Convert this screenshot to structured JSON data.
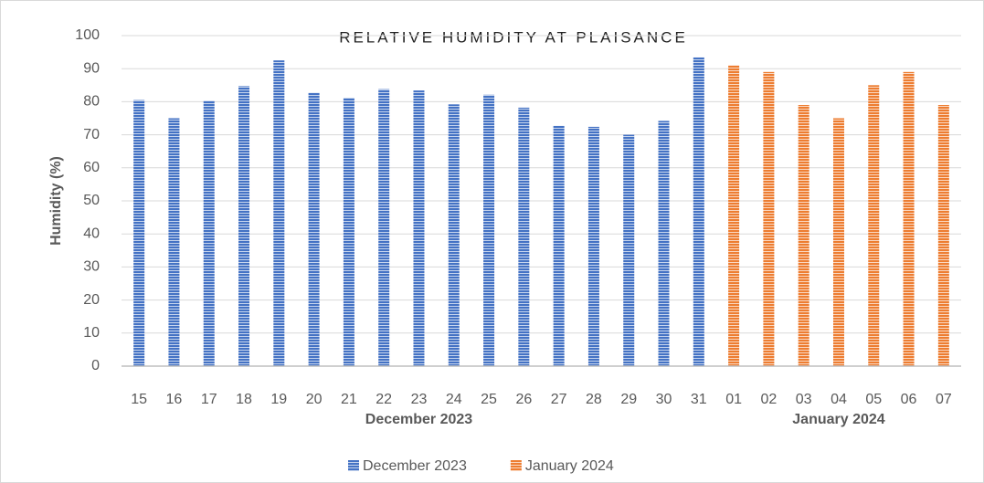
{
  "chart_data": {
    "type": "bar",
    "title": "RELATIVE HUMIDITY AT PLAISANCE",
    "y_label": "Humidity (%)",
    "categories": [
      "15",
      "16",
      "17",
      "18",
      "19",
      "20",
      "21",
      "22",
      "23",
      "24",
      "25",
      "26",
      "27",
      "28",
      "29",
      "30",
      "31",
      "01",
      "02",
      "03",
      "04",
      "05",
      "06",
      "07"
    ],
    "series": [
      {
        "name": "December 2023",
        "color": "#4472c4",
        "values": [
          80.5,
          75,
          80.3,
          84.7,
          92.5,
          82.7,
          81.2,
          83.8,
          83.4,
          79.2,
          82.1,
          78.2,
          72.7,
          72.4,
          70,
          74.2,
          93.4,
          null,
          null,
          null,
          null,
          null,
          null,
          null
        ]
      },
      {
        "name": "January 2024",
        "color": "#ed7d31",
        "values": [
          null,
          null,
          null,
          null,
          null,
          null,
          null,
          null,
          null,
          null,
          null,
          null,
          null,
          null,
          null,
          null,
          null,
          91,
          89,
          79,
          75,
          85,
          89,
          79
        ]
      }
    ],
    "ylim": [
      0,
      100
    ],
    "yticks": [
      0,
      10,
      20,
      30,
      40,
      50,
      60,
      70,
      80,
      90,
      100
    ],
    "grid": true,
    "legend": "bottom"
  }
}
